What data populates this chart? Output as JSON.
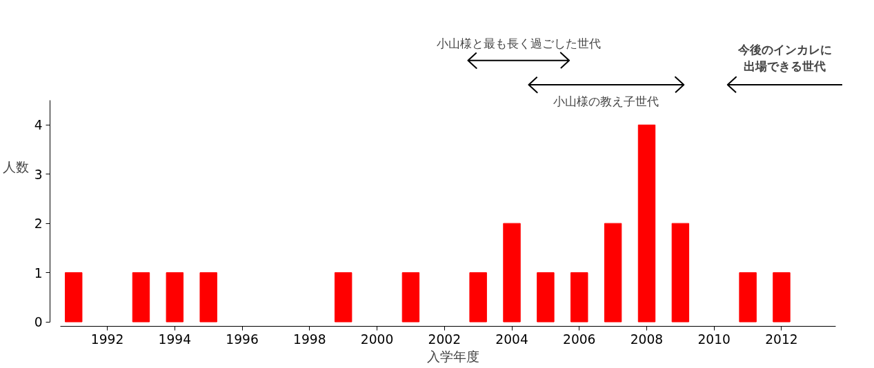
{
  "chart_data": {
    "type": "bar",
    "xlabel": "入学年度",
    "ylabel": "人数",
    "x": [
      1991,
      1993,
      1994,
      1995,
      1999,
      2001,
      2003,
      2004,
      2005,
      2006,
      2007,
      2008,
      2009,
      2011,
      2012
    ],
    "values": [
      1,
      1,
      1,
      1,
      1,
      1,
      1,
      2,
      1,
      1,
      2,
      4,
      2,
      1,
      1
    ],
    "color": "#ff0000",
    "xlim": [
      1990.6,
      2013.6
    ],
    "xticks": [
      1992,
      1994,
      1996,
      1998,
      2000,
      2002,
      2004,
      2006,
      2008,
      2010,
      2012
    ],
    "ylim": [
      0,
      4.5
    ],
    "yticks": [
      0,
      1,
      2,
      3,
      4
    ],
    "annotations": [
      "小山様と最も長く過ごした世代",
      "小山様の教え子世代",
      "今後のインカレに出場できる世代"
    ],
    "grid": false
  }
}
